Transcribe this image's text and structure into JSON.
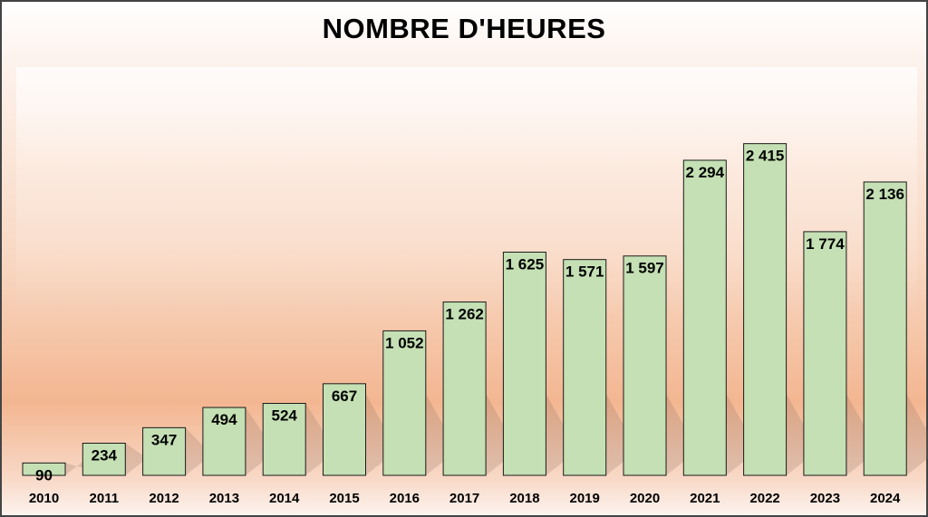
{
  "chart_data": {
    "type": "bar",
    "title": "NOMBRE D'HEURES",
    "categories": [
      "2010",
      "2011",
      "2012",
      "2013",
      "2014",
      "2015",
      "2016",
      "2017",
      "2018",
      "2019",
      "2020",
      "2021",
      "2022",
      "2023",
      "2024"
    ],
    "values": [
      90,
      234,
      347,
      494,
      524,
      667,
      1052,
      1262,
      1625,
      1571,
      1597,
      2294,
      2415,
      1774,
      2136
    ],
    "value_labels": [
      "90",
      "234",
      "347",
      "494",
      "524",
      "667",
      "1 052",
      "1 262",
      "1 625",
      "1 571",
      "1 597",
      "2 294",
      "2 415",
      "1 774",
      "2 136"
    ],
    "ylim": [
      0,
      2500
    ],
    "grid": false,
    "legend": "none",
    "bar_color": "#c5e0b4",
    "bar_border_color": "#1a1a1a"
  }
}
